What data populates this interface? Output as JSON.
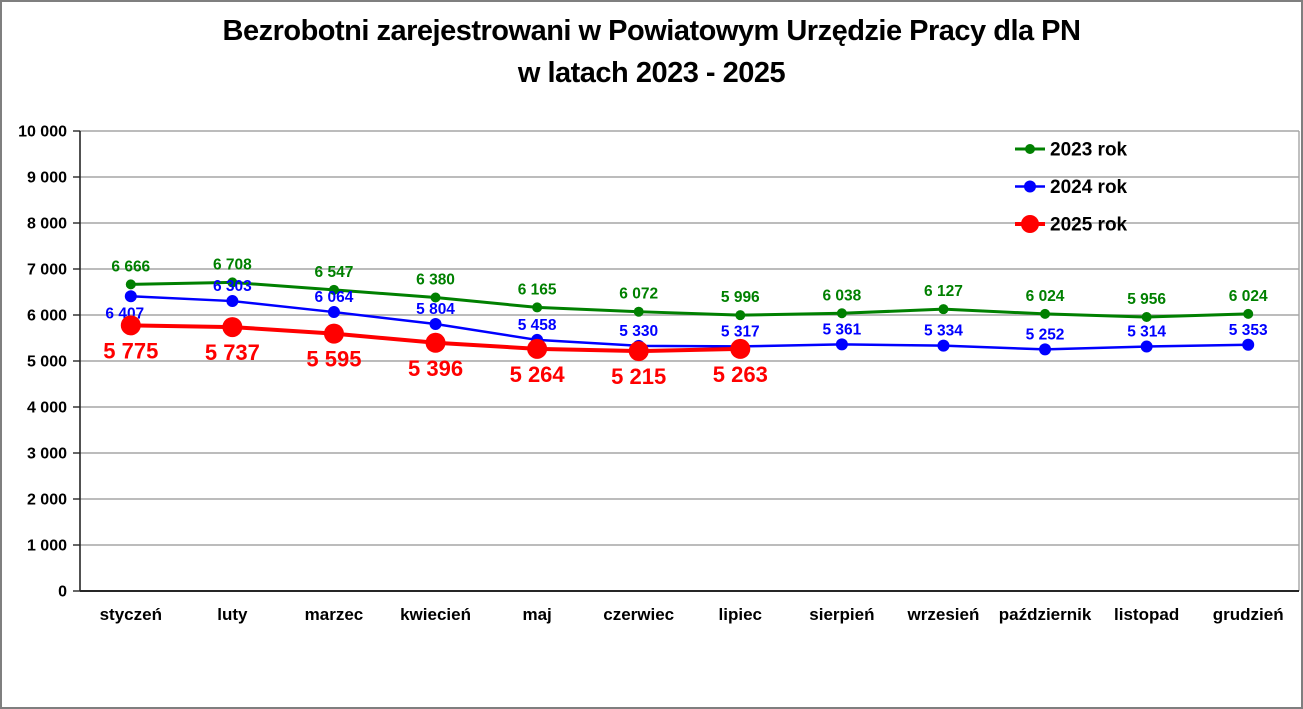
{
  "title": {
    "line1": "Bezrobotni zarejestrowani w Powiatowym Urzędzie Pracy dla PN",
    "line2": "w latach 2023 - 2025"
  },
  "chart_data": {
    "type": "line",
    "title": "Bezrobotni zarejestrowani w Powiatowym Urzędzie Pracy dla PN w latach 2023 - 2025",
    "categories": [
      "styczeń",
      "luty",
      "marzec",
      "kwiecień",
      "maj",
      "czerwiec",
      "lipiec",
      "sierpień",
      "wrzesień",
      "październik",
      "listopad",
      "grudzień"
    ],
    "series": [
      {
        "name": "2023 rok",
        "color": "#008000",
        "marker_radius": 5,
        "line_width": 3,
        "label_side": "above",
        "values": [
          6666,
          6708,
          6547,
          6380,
          6165,
          6072,
          5996,
          6038,
          6127,
          6024,
          5956,
          6024
        ]
      },
      {
        "name": "2024 rok",
        "color": "#0000ff",
        "marker_radius": 6,
        "line_width": 2.5,
        "label_side": "above",
        "label_side_overrides": {
          "0": "below"
        },
        "values": [
          6407,
          6303,
          6064,
          5804,
          5458,
          5330,
          5317,
          5361,
          5334,
          5252,
          5314,
          5353
        ]
      },
      {
        "name": "2025 rok",
        "color": "#ff0000",
        "marker_radius": 10,
        "line_width": 4,
        "label_side": "below",
        "values": [
          5775,
          5737,
          5595,
          5396,
          5264,
          5215,
          5263,
          null,
          null,
          null,
          null,
          null
        ]
      }
    ],
    "xlabel": "",
    "ylabel": "",
    "ylim": [
      0,
      10000
    ],
    "ytick_interval": 1000,
    "ytick_labels": [
      "0",
      "1 000",
      "2 000",
      "3 000",
      "4 000",
      "5 000",
      "6 000",
      "7 000",
      "8 000",
      "9 000",
      "10 000"
    ],
    "grid": true,
    "legend_position": "top-right",
    "legend_entries": [
      "2023 rok",
      "2024 rok",
      "2025 rok"
    ],
    "number_format": "space-thousands",
    "data_labels": true
  },
  "colors": {
    "series_2023": "#008000",
    "series_2024": "#0000ff",
    "series_2025": "#ff0000",
    "gridline": "#a6a6a6",
    "axis": "#262626",
    "text": "#000000"
  }
}
